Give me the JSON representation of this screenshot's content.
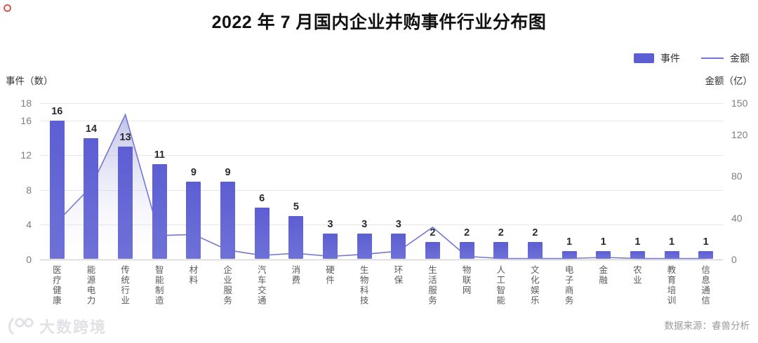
{
  "title": "2022 年 7 月国内企业并购事件行业分布图",
  "legend": {
    "bar_label": "事件",
    "line_label": "金额"
  },
  "axes": {
    "left_title": "事件（数）",
    "right_title": "金额（亿）"
  },
  "chart_data": {
    "type": "bar",
    "title": "2022 年 7 月国内企业并购事件行业分布图",
    "categories": [
      "医疗健康",
      "能源电力",
      "传统行业",
      "智能制造",
      "材料",
      "企业服务",
      "汽车交通",
      "消费",
      "硬件",
      "生物科技",
      "环保",
      "生活服务",
      "物联网",
      "人工智能",
      "文化娱乐",
      "电子商务",
      "金融",
      "农业",
      "教育培训",
      "信息通信"
    ],
    "series": [
      {
        "name": "事件",
        "type": "bar",
        "axis": "left",
        "values": [
          16,
          14,
          13,
          11,
          9,
          9,
          6,
          5,
          3,
          3,
          3,
          2,
          2,
          2,
          2,
          1,
          1,
          1,
          1,
          1
        ]
      },
      {
        "name": "金额",
        "type": "line",
        "axis": "right",
        "values": [
          36,
          70,
          139,
          23,
          24,
          9,
          4,
          6,
          3,
          5,
          8,
          31,
          3,
          1,
          1,
          1,
          2,
          1,
          1,
          1
        ]
      }
    ],
    "left_axis": {
      "label": "事件（数）",
      "min": 0,
      "max": 18,
      "ticks": [
        0,
        4,
        8,
        12,
        16,
        18
      ]
    },
    "right_axis": {
      "label": "金额（亿）",
      "min": 0,
      "max": 150,
      "ticks": [
        0,
        40,
        80,
        120,
        150
      ]
    },
    "grid": true,
    "legend_position": "top-right",
    "bar_value_labels_shown": true
  },
  "colors": {
    "bar": "#5c5ed3",
    "bar_bottom": "#6f71d8",
    "line": "#7477cf",
    "area_top": "rgba(139,143,214,0.55)",
    "area_bottom": "rgba(250,250,253,0.04)"
  },
  "footer": {
    "watermark": "大数跨境",
    "source": "数据来源：睿兽分析"
  }
}
